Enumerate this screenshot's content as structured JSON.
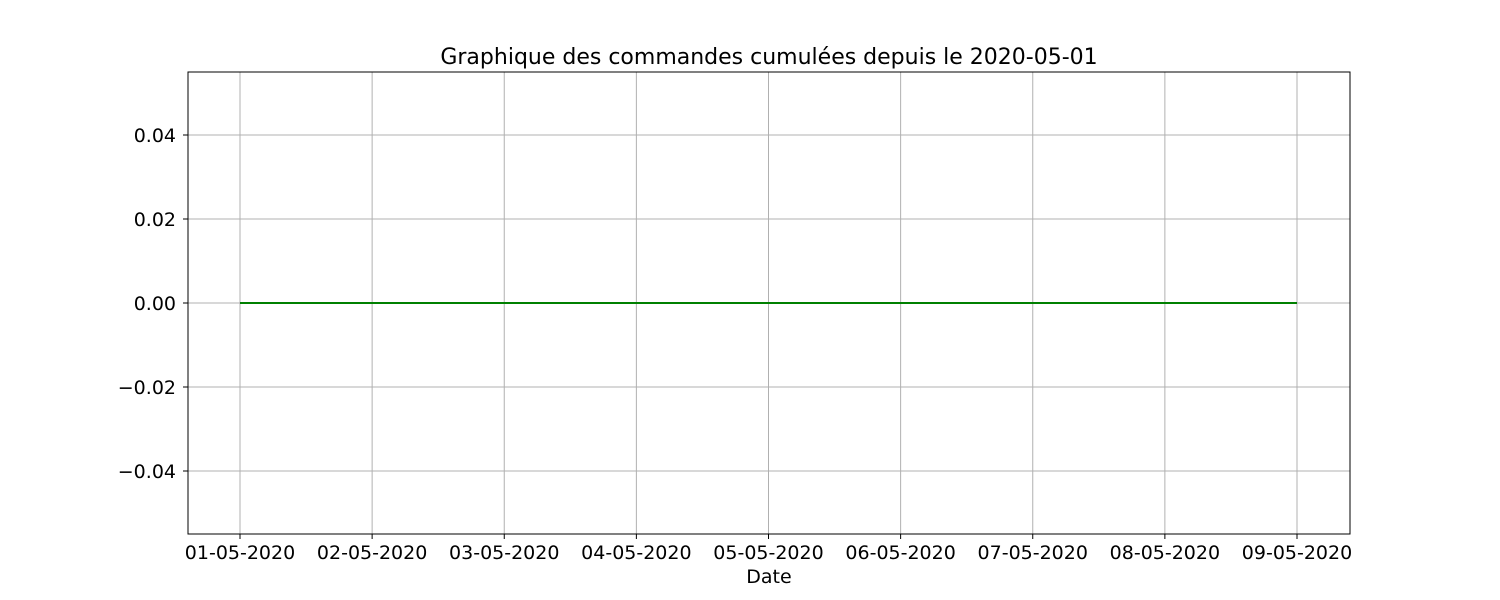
{
  "chart_data": {
    "type": "line",
    "title": "Graphique des commandes cumulées depuis le 2020-05-01",
    "xlabel": "Date",
    "ylabel": "",
    "x": [
      "01-05-2020",
      "02-05-2020",
      "03-05-2020",
      "04-05-2020",
      "05-05-2020",
      "06-05-2020",
      "07-05-2020",
      "08-05-2020",
      "09-05-2020"
    ],
    "x_tick_labels": [
      "01-05-2020",
      "02-05-2020",
      "03-05-2020",
      "04-05-2020",
      "05-05-2020",
      "06-05-2020",
      "07-05-2020",
      "08-05-2020",
      "09-05-2020"
    ],
    "series": [
      {
        "values": [
          0,
          0,
          0,
          0,
          0,
          0,
          0,
          0,
          0
        ],
        "color": "#008000"
      }
    ],
    "ylim": [
      -0.055,
      0.055
    ],
    "y_ticks": [
      0.04,
      0.02,
      0.0,
      -0.02,
      -0.04
    ],
    "y_tick_labels": [
      "0.04",
      "0.02",
      "0.00",
      "−0.02",
      "−0.04"
    ],
    "grid": true,
    "grid_color": "#b0b0b0"
  }
}
